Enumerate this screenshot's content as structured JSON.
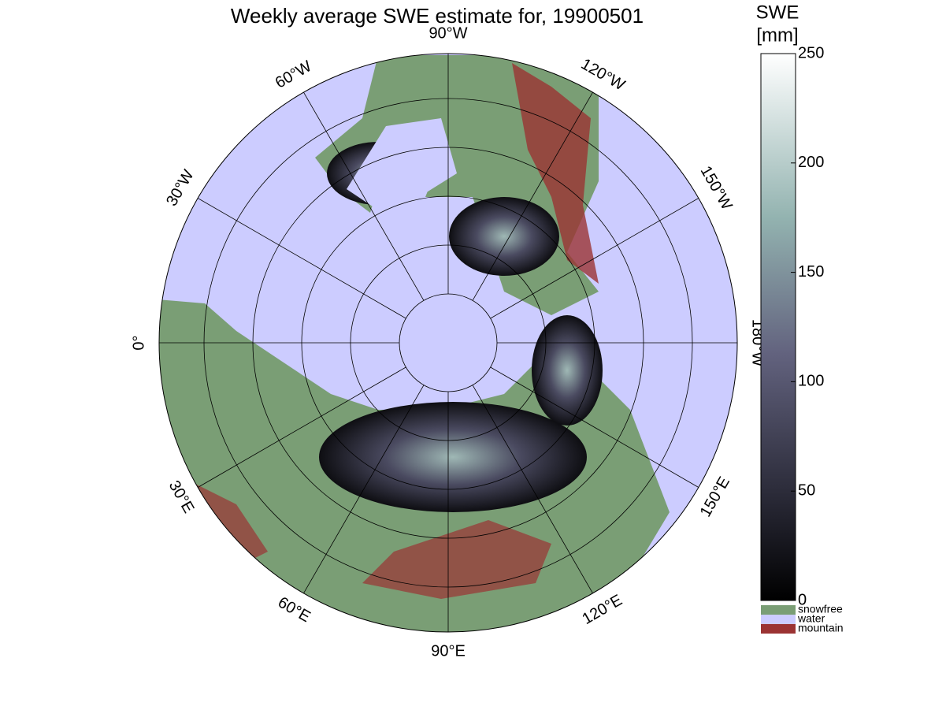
{
  "title": "Weekly average SWE estimate for, 19900501",
  "longitude_labels": [
    "0°",
    "30°E",
    "60°E",
    "90°E",
    "120°E",
    "150°E",
    "180°W",
    "150°W",
    "120°W",
    "90°W",
    "60°W",
    "30°W"
  ],
  "colorbar": {
    "label_lines": [
      "SWE",
      "[mm]"
    ],
    "lim": [
      0,
      250
    ],
    "ticks": [
      0,
      50,
      100,
      150,
      200,
      250
    ]
  },
  "legend": [
    {
      "name": "snowfree",
      "color": "#7a9e75"
    },
    {
      "name": "water",
      "color": "#ccccff"
    },
    {
      "name": "mountain",
      "color": "#9b3333"
    }
  ]
}
